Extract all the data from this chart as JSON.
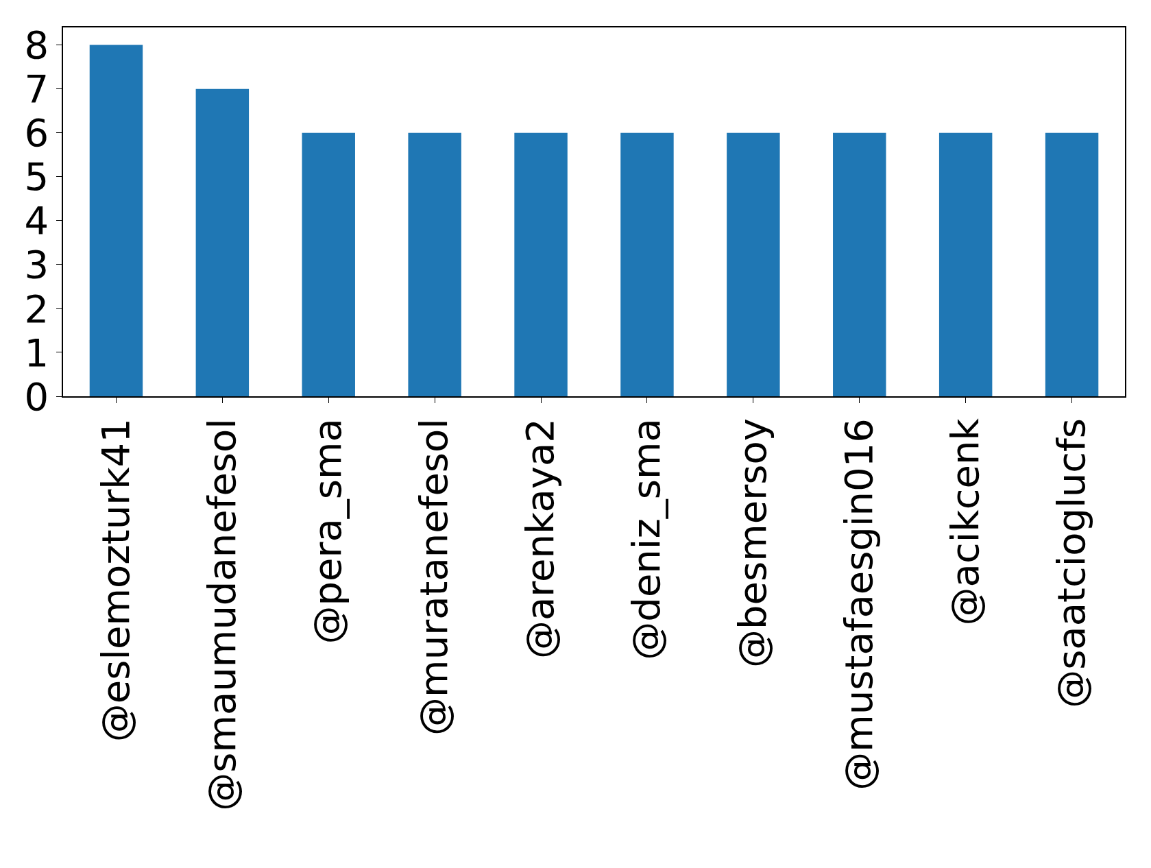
{
  "chart_data": {
    "type": "bar",
    "categories": [
      "@eslemozturk41",
      "@smaumudanefesol",
      "@pera_sma",
      "@muratanefesol",
      "@arenkaya2",
      "@deniz_sma",
      "@besmersoy",
      "@mustafaesgin016",
      "@acikcenk",
      "@saatcioglucfs"
    ],
    "values": [
      8,
      7,
      6,
      6,
      6,
      6,
      6,
      6,
      6,
      6
    ],
    "color": "#1f77b4",
    "ylim": [
      0,
      8.4
    ],
    "yticks": [
      0,
      1,
      2,
      3,
      4,
      5,
      6,
      7,
      8
    ]
  }
}
